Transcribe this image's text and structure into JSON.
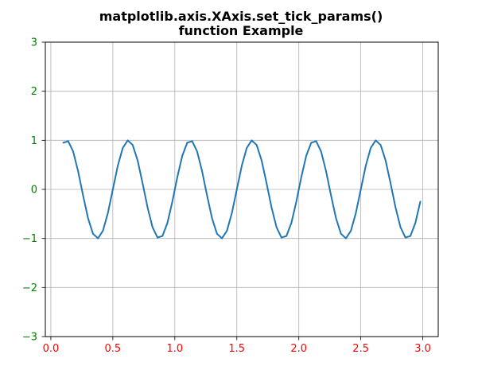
{
  "chart_data": {
    "type": "line",
    "title_lines": [
      "matplotlib.axis.XAxis.set_tick_params()",
      "function Example"
    ],
    "xlabel": "",
    "ylabel": "",
    "xlim": [
      -0.0445,
      3.1245
    ],
    "ylim": [
      -3,
      3
    ],
    "grid": true,
    "x_ticks": [
      0.0,
      0.5,
      1.0,
      1.5,
      2.0,
      2.5,
      3.0
    ],
    "x_tick_labels": [
      "0.0",
      "0.5",
      "1.0",
      "1.5",
      "2.0",
      "2.5",
      "3.0"
    ],
    "y_ticks": [
      -3,
      -2,
      -1,
      0,
      1,
      2,
      3
    ],
    "y_tick_labels": [
      "−3",
      "−2",
      "−1",
      "0",
      "1",
      "2",
      "3"
    ],
    "x_tick_color": "#ff0000",
    "y_tick_color": "#008000",
    "series": [
      {
        "color": "#1f77b4",
        "x": [
          0.1,
          0.14,
          0.18,
          0.22,
          0.26,
          0.3,
          0.34,
          0.38,
          0.42,
          0.46,
          0.5,
          0.54,
          0.58,
          0.62,
          0.66,
          0.7,
          0.74,
          0.78,
          0.82,
          0.86,
          0.9,
          0.94,
          0.98,
          1.02,
          1.06,
          1.1,
          1.14,
          1.18,
          1.22,
          1.26,
          1.3,
          1.34,
          1.38,
          1.42,
          1.46,
          1.5,
          1.54,
          1.58,
          1.62,
          1.66,
          1.7,
          1.74,
          1.78,
          1.82,
          1.86,
          1.9,
          1.94,
          1.98,
          2.02,
          2.06,
          2.1,
          2.14,
          2.18,
          2.22,
          2.26,
          2.3,
          2.34,
          2.38,
          2.42,
          2.46,
          2.5,
          2.54,
          2.58,
          2.62,
          2.66,
          2.7,
          2.74,
          2.78,
          2.82,
          2.86,
          2.9,
          2.94,
          2.98
        ],
        "y": [
          0.951,
          0.982,
          0.771,
          0.368,
          -0.125,
          -0.588,
          -0.905,
          -0.998,
          -0.844,
          -0.482,
          0.0,
          0.482,
          0.844,
          0.998,
          0.905,
          0.588,
          0.125,
          -0.368,
          -0.771,
          -0.982,
          -0.951,
          -0.685,
          -0.249,
          0.249,
          0.685,
          0.951,
          0.982,
          0.771,
          0.368,
          -0.125,
          -0.588,
          -0.905,
          -0.998,
          -0.844,
          -0.482,
          0.0,
          0.482,
          0.844,
          0.998,
          0.905,
          0.588,
          0.125,
          -0.368,
          -0.771,
          -0.982,
          -0.951,
          -0.685,
          -0.249,
          0.249,
          0.685,
          0.951,
          0.982,
          0.771,
          0.368,
          -0.125,
          -0.588,
          -0.905,
          -0.998,
          -0.844,
          -0.482,
          0.0,
          0.482,
          0.844,
          0.998,
          0.905,
          0.588,
          0.125,
          -0.368,
          -0.771,
          -0.982,
          -0.951,
          -0.685,
          -0.249
        ]
      }
    ]
  }
}
